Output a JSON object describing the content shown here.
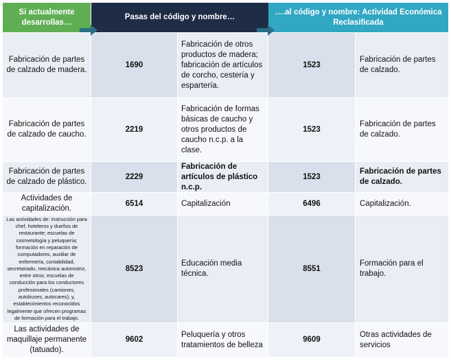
{
  "header": {
    "col1": "Si actualmente desarrollas…",
    "col2": "Pasas del código y nombre…",
    "col3": "….al código y nombre: Actividad Económica Reclasificada"
  },
  "rows": [
    {
      "activity": "Fabricación de partes de calzado de madera.",
      "from_code": "1690",
      "from_name": "Fabricación de otros productos de madera; fabricación de artículos de corcho, cestería y espartería.",
      "to_code": "1523",
      "to_name": "Fabricación de partes de calzado."
    },
    {
      "activity": "Fabricación de partes de calzado de caucho.",
      "from_code": "2219",
      "from_name": "Fabricación de formas básicas de caucho y otros productos de caucho n.c.p. a la clase.",
      "to_code": "1523",
      "to_name": "Fabricación de partes de calzado."
    },
    {
      "activity": "Fabricación de partes de calzado de plástico.",
      "from_code": "2229",
      "from_name": "Fabricación de artículos de plástico n.c.p.",
      "to_code": "1523",
      "to_name": "Fabricación de partes de calzado."
    },
    {
      "activity": "Actividades de capitalización.",
      "from_code": "6514",
      "from_name": "Capitalización",
      "to_code": "6496",
      "to_name": "Capitalización."
    },
    {
      "activity": "Las actividades de: instrucción para chef, hoteleros y dueños de restaurante; escuelas de cosmetología y peluquería; formación en reparación de computadores, auxiliar de enfermería, contabilidad, secretariado, mecánica automotriz, entre otros; escuelas de conducción para los conductores profesionales (camiones, autobuses, autocares); y, establecimientos reconocidos legalmente que ofrecen programas de formación para el trabajo.",
      "from_code": "8523",
      "from_name": "Educación media técnica.",
      "to_code": "8551",
      "to_name": "Formación para el trabajo."
    },
    {
      "activity": "Las actividades de maquillaje permanente (tatuado).",
      "from_code": "9602",
      "from_name": "Peluquería y otros tratamientos de belleza",
      "to_code": "9609",
      "to_name": "Otras actividades de servicios"
    }
  ]
}
